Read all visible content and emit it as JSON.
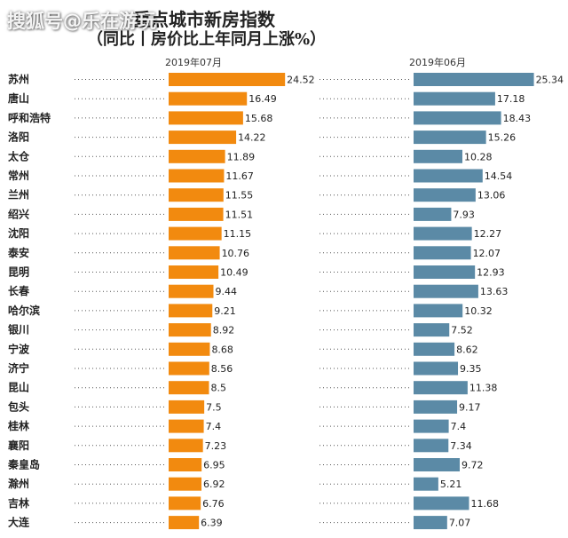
{
  "title": "重点城市新房指数",
  "subtitle": "（同比丨房价比上年同月上涨%）",
  "watermark": "搜狐号@乐在游玩",
  "colors": {
    "jul": "#f28a0f",
    "jun": "#5b8aa6",
    "dots": "#555555"
  },
  "chart_data": {
    "type": "bar",
    "orientation": "horizontal",
    "title": "重点城市新房指数",
    "subtitle": "（同比丨房价比上年同月上涨%）",
    "categories": [
      "苏州",
      "唐山",
      "呼和浩特",
      "洛阳",
      "太仓",
      "常州",
      "兰州",
      "绍兴",
      "沈阳",
      "泰安",
      "昆明",
      "长春",
      "哈尔滨",
      "银川",
      "宁波",
      "济宁",
      "昆山",
      "包头",
      "桂林",
      "襄阳",
      "秦皇岛",
      "滁州",
      "吉林",
      "大连"
    ],
    "series": [
      {
        "name": "2019年07月",
        "values": [
          24.52,
          16.49,
          15.68,
          14.22,
          11.89,
          11.67,
          11.55,
          11.51,
          11.15,
          10.76,
          10.49,
          9.44,
          9.21,
          8.92,
          8.68,
          8.56,
          8.5,
          7.5,
          7.4,
          7.23,
          6.95,
          6.92,
          6.76,
          6.39
        ]
      },
      {
        "name": "2019年06月",
        "values": [
          25.34,
          17.18,
          18.43,
          15.26,
          10.28,
          14.54,
          13.06,
          7.93,
          12.27,
          12.07,
          12.93,
          13.63,
          10.32,
          7.52,
          8.62,
          9.35,
          11.38,
          9.17,
          7.4,
          7.34,
          9.72,
          5.21,
          11.68,
          7.07
        ]
      }
    ],
    "value_labels": [
      [
        "24.52",
        "16.49",
        "15.68",
        "14.22",
        "11.89",
        "11.67",
        "11.55",
        "11.51",
        "11.15",
        "10.76",
        "10.49",
        "9.44",
        "9.21",
        "8.92",
        "8.68",
        "8.56",
        "8.5",
        "7.5",
        "7.4",
        "7.23",
        "6.95",
        "6.92",
        "6.76",
        "6.39"
      ],
      [
        "25.34",
        "17.18",
        "18.43",
        "15.26",
        "10.28",
        "14.54",
        "13.06",
        "7.93",
        "12.27",
        "12.07",
        "12.93",
        "13.63",
        "10.32",
        "7.52",
        "8.62",
        "9.35",
        "11.38",
        "9.17",
        "7.4",
        "7.34",
        "9.72",
        "5.21",
        "11.68",
        "7.07"
      ]
    ],
    "xlim": [
      0,
      26
    ],
    "grid": false
  }
}
